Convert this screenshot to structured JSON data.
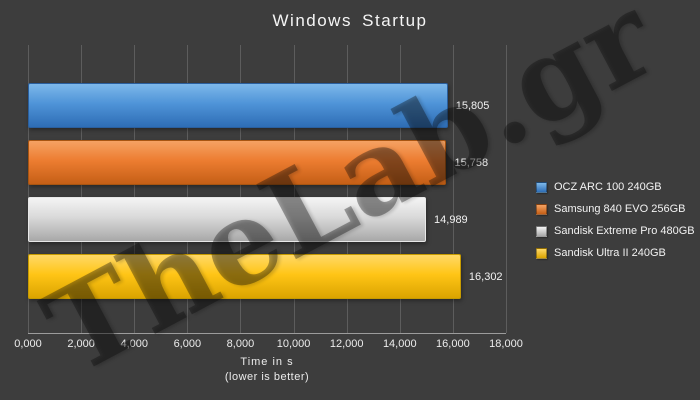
{
  "title": "Windows Startup",
  "watermark": "TheLab.gr",
  "colors": {
    "background": "#3d3d3d",
    "grid": "#5d5d5d",
    "axis": "#9c9c9c",
    "text": "#f2f2f2"
  },
  "chart_data": {
    "type": "bar",
    "orientation": "horizontal",
    "title": "Windows Startup",
    "categories": [
      "OCZ ARC 100 240GB",
      "Samsung 840 EVO 256GB",
      "Sandisk Extreme Pro 480GB",
      "Sandisk Ultra II 240GB"
    ],
    "values": [
      15805,
      15758,
      14989,
      16302
    ],
    "xlabel": "Time in s",
    "xlabel_sub": "(lower is better)",
    "xlim": [
      0,
      18000
    ],
    "x_tick_values": [
      0,
      2000,
      4000,
      6000,
      8000,
      10000,
      12000,
      14000,
      16000,
      18000
    ],
    "x_tick_labels": [
      "0,000",
      "2,000",
      "4,000",
      "6,000",
      "8,000",
      "10,000",
      "12,000",
      "14,000",
      "16,000",
      "18,000"
    ],
    "grid": true,
    "legend_position": "right",
    "bars": [
      {
        "label": "OCZ ARC 100 240GB",
        "value": 15805,
        "display": "15,805",
        "light": "#7db8ea",
        "base": "#4f94d8",
        "dark": "#2e6db5",
        "border": "#2a5f9e"
      },
      {
        "label": "Samsung 840 EVO 256GB",
        "value": 15758,
        "display": "15,758",
        "light": "#f5a263",
        "base": "#ed7d31",
        "dark": "#c55f16",
        "border": "#a85511"
      },
      {
        "label": "Sandisk Extreme Pro 480GB",
        "value": 14989,
        "display": "14,989",
        "light": "#f4f4f4",
        "base": "#d9d9d9",
        "dark": "#a8a8a8",
        "border": "#e8e8e8"
      },
      {
        "label": "Sandisk Ultra II 240GB",
        "value": 16302,
        "display": "16,302",
        "light": "#ffd967",
        "base": "#ffc516",
        "dark": "#dba400",
        "border": "#c79b00"
      }
    ]
  }
}
